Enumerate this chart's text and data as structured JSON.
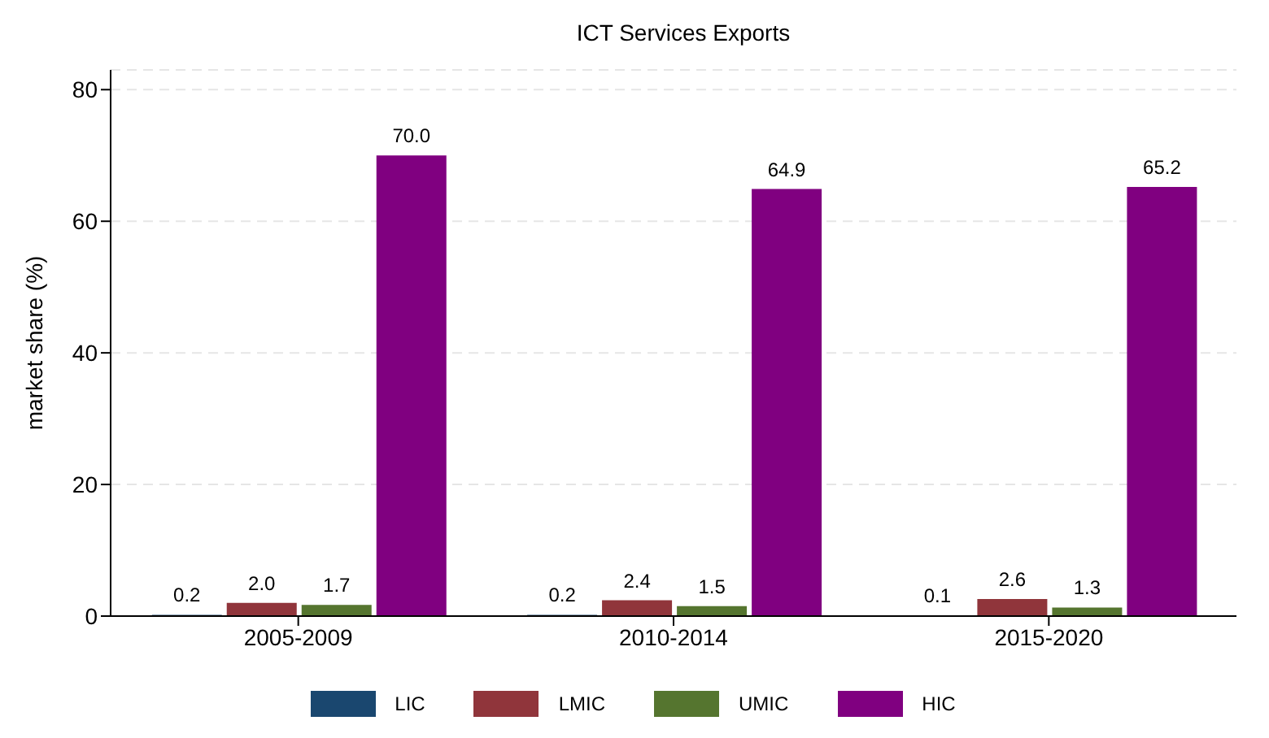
{
  "chart_data": {
    "type": "bar",
    "title": "ICT Services Exports",
    "ylabel": "market share (%)",
    "categories": [
      "2005-2009",
      "2010-2014",
      "2015-2020"
    ],
    "series": [
      {
        "name": "LIC",
        "color": "#1a476f",
        "values": [
          0.2,
          0.2,
          0.1
        ],
        "value_labels": [
          "0.2",
          "0.2",
          "0.1"
        ]
      },
      {
        "name": "LMIC",
        "color": "#90353b",
        "values": [
          2.0,
          2.4,
          2.6
        ],
        "value_labels": [
          "2.0",
          "2.4",
          "2.6"
        ]
      },
      {
        "name": "UMIC",
        "color": "#55752f",
        "values": [
          1.7,
          1.5,
          1.3
        ],
        "value_labels": [
          "1.7",
          "1.5",
          "1.3"
        ]
      },
      {
        "name": "HIC",
        "color": "#800080",
        "values": [
          70.0,
          64.9,
          65.2
        ],
        "value_labels": [
          "70.0",
          "64.9",
          "65.2"
        ]
      }
    ],
    "ylim": [
      0,
      83
    ],
    "yticks": [
      0,
      20,
      40,
      60,
      80
    ],
    "grid": "y",
    "legend": "bottom"
  }
}
